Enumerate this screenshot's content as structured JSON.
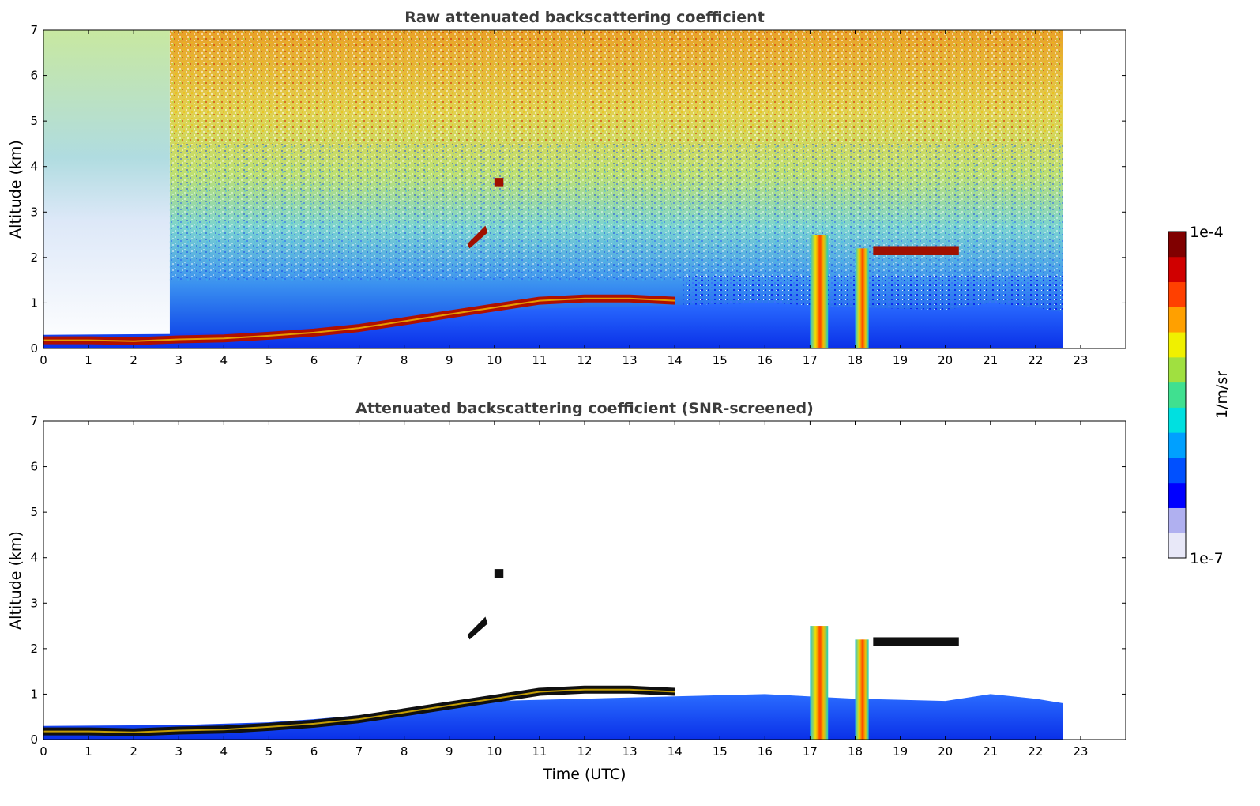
{
  "chart_data": [
    {
      "type": "heatmap",
      "title": "Raw attenuated backscattering coefficient",
      "xlabel": "",
      "ylabel": "Altitude (km)",
      "xlim": [
        0,
        24
      ],
      "ylim": [
        0,
        7
      ],
      "x_ticks": [
        "0",
        "1",
        "2",
        "3",
        "4",
        "5",
        "6",
        "7",
        "8",
        "9",
        "10",
        "11",
        "12",
        "13",
        "14",
        "15",
        "16",
        "17",
        "18",
        "19",
        "20",
        "21",
        "22",
        "23"
      ],
      "y_ticks": [
        "0",
        "1",
        "2",
        "3",
        "4",
        "5",
        "6",
        "7"
      ],
      "data_extent_x": [
        0,
        22.6
      ],
      "grid": false,
      "features": [
        {
          "kind": "boundary_layer_top",
          "points": [
            [
              0,
              0.18
            ],
            [
              1,
              0.18
            ],
            [
              2,
              0.16
            ],
            [
              3,
              0.2
            ],
            [
              4,
              0.22
            ],
            [
              5,
              0.28
            ],
            [
              6,
              0.35
            ],
            [
              7,
              0.45
            ],
            [
              8,
              0.6
            ],
            [
              9,
              0.75
            ],
            [
              10,
              0.9
            ],
            [
              11,
              1.05
            ],
            [
              12,
              1.1
            ],
            [
              13,
              1.1
            ],
            [
              14,
              1.05
            ]
          ],
          "level": "high"
        },
        {
          "kind": "cloud_layer",
          "x": [
            19.0,
            20.3
          ],
          "altitude": 2.15,
          "level": "high"
        },
        {
          "kind": "precipitation_column",
          "x": [
            17.0,
            17.4
          ],
          "altitude": [
            0,
            2.5
          ],
          "level": "high"
        },
        {
          "kind": "precipitation_column",
          "x": [
            18.0,
            18.3
          ],
          "altitude": [
            0,
            2.2
          ],
          "level": "high"
        },
        {
          "kind": "cloud_patch",
          "x": [
            9.4,
            9.8
          ],
          "altitude": [
            2.3,
            2.7
          ],
          "level": "high"
        },
        {
          "kind": "cloud_patch",
          "x": [
            10.0,
            10.2
          ],
          "altitude": [
            3.55,
            3.75
          ],
          "level": "high"
        }
      ]
    },
    {
      "type": "heatmap",
      "title": "Attenuated backscattering coefficient (SNR-screened)",
      "xlabel": "Time (UTC)",
      "ylabel": "Altitude (km)",
      "xlim": [
        0,
        24
      ],
      "ylim": [
        0,
        7
      ],
      "x_ticks": [
        "0",
        "1",
        "2",
        "3",
        "4",
        "5",
        "6",
        "7",
        "8",
        "9",
        "10",
        "11",
        "12",
        "13",
        "14",
        "15",
        "16",
        "17",
        "18",
        "19",
        "20",
        "21",
        "22",
        "23"
      ],
      "y_ticks": [
        "0",
        "1",
        "2",
        "3",
        "4",
        "5",
        "6",
        "7"
      ],
      "data_extent_x": [
        0,
        22.6
      ],
      "grid": false,
      "screened": true
    }
  ],
  "colorbar": {
    "label": "1/m/sr",
    "min_label": "1e-7",
    "max_label": "1e-4",
    "scale": "log",
    "colormap": [
      "#e8e8f8",
      "#b0b0f0",
      "#0000ff",
      "#0050ff",
      "#00a0ff",
      "#00e0e0",
      "#40e090",
      "#a0e040",
      "#f0f000",
      "#ffa000",
      "#ff4000",
      "#d00000",
      "#800000"
    ]
  }
}
